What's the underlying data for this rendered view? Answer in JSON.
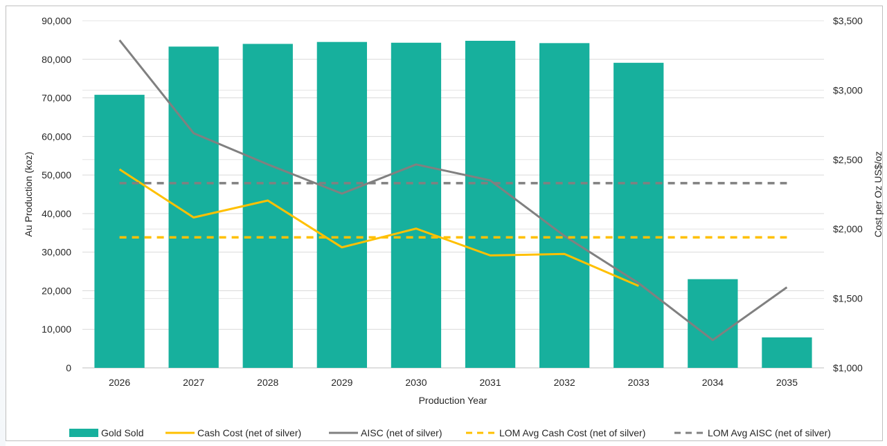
{
  "chart_data": {
    "type": "bar",
    "categories": [
      "2026",
      "2027",
      "2028",
      "2029",
      "2030",
      "2031",
      "2032",
      "2033",
      "2034",
      "2035"
    ],
    "xlabel": "Production Year",
    "ylabel": "Au  Production (koz)",
    "y2label": "Cost per Oz US$/oz",
    "ylim": [
      0,
      90000
    ],
    "y2lim": [
      1000,
      3500
    ],
    "y_ticks": [
      "0",
      "10,000",
      "20,000",
      "30,000",
      "40,000",
      "50,000",
      "60,000",
      "70,000",
      "80,000",
      "90,000"
    ],
    "y2_ticks": [
      "$1,000",
      "$1,500",
      "$2,000",
      "$2,500",
      "$3,000",
      "$3,500"
    ],
    "grid": true,
    "legend_position": "bottom",
    "series": [
      {
        "name": "Gold Sold",
        "kind": "bar",
        "axis": "left",
        "color": "#17b09d",
        "values": [
          70800,
          83300,
          84000,
          84500,
          84300,
          84800,
          84200,
          79100,
          23000,
          7900
        ]
      },
      {
        "name": "Cash Cost (net of silver)",
        "kind": "line",
        "axis": "right",
        "color": "#ffc000",
        "values": [
          2430,
          2083,
          2205,
          1868,
          2003,
          1810,
          1820,
          1590,
          null,
          null
        ]
      },
      {
        "name": "AISC (net of silver)",
        "kind": "line",
        "axis": "right",
        "color": "#808080",
        "values": [
          3360,
          2690,
          2465,
          2255,
          2465,
          2350,
          1950,
          1610,
          1200,
          1580
        ]
      },
      {
        "name": "LOM Avg Cash Cost (net of silver)",
        "kind": "dashed",
        "axis": "right",
        "color": "#ffc000",
        "values": [
          1940,
          1940,
          1940,
          1940,
          1940,
          1940,
          1940,
          1940,
          1940,
          1940
        ]
      },
      {
        "name": "LOM Avg AISC (net of silver)",
        "kind": "dashed",
        "axis": "right",
        "color": "#808080",
        "values": [
          2330,
          2330,
          2330,
          2330,
          2330,
          2330,
          2330,
          2330,
          2330,
          2330
        ]
      }
    ]
  }
}
